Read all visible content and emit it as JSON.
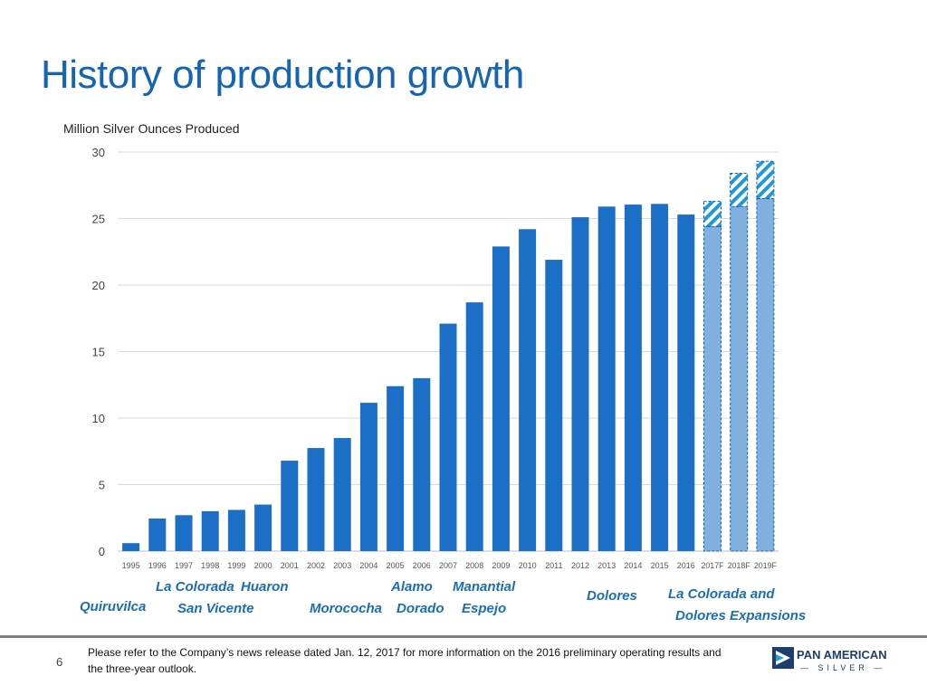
{
  "title": "History of production growth",
  "page_number": "6",
  "footnote": "Please refer to the Company’s news release dated Jan. 12, 2017 for more information on the 2016 preliminary operating results and the three-year outlook.",
  "logo": {
    "name": "PAN AMERICAN",
    "sub": "— SILVER —"
  },
  "colors": {
    "actual": "#1b6fc6",
    "forecast_base": "#7fb0df",
    "forecast_hatch": "#1f9ad6",
    "title": "#1565b0",
    "annotation": "#1b6db5"
  },
  "annotations": [
    "Quiruvilca",
    "La Colorada",
    "San Vicente",
    "Huaron",
    "Morococha",
    "Alamo",
    "Dorado",
    "Manantial",
    "Espejo",
    "Dolores",
    "La Colorada and",
    "Dolores Expansions"
  ],
  "chart_data": {
    "type": "bar",
    "ylabel": "Million Silver Ounces Produced",
    "ylim": [
      0,
      30
    ],
    "yticks": [
      0,
      5,
      10,
      15,
      20,
      25,
      30
    ],
    "grid": true,
    "categories": [
      "1995",
      "1996",
      "1997",
      "1998",
      "1999",
      "2000",
      "2001",
      "2002",
      "2003",
      "2004",
      "2005",
      "2006",
      "2007",
      "2008",
      "2009",
      "2010",
      "2011",
      "2012",
      "2013",
      "2014",
      "2015",
      "2016",
      "2017F",
      "2018F",
      "2019F"
    ],
    "series": [
      {
        "values": [
          0.6,
          2.45,
          2.7,
          3.0,
          3.1,
          3.5,
          6.8,
          7.75,
          8.5,
          11.15,
          12.4,
          13.0,
          17.1,
          18.7,
          22.9,
          24.2,
          21.9,
          25.1,
          25.9,
          26.05,
          26.1,
          25.3,
          24.4,
          25.9,
          26.5
        ]
      },
      {
        "values": [
          0,
          0,
          0,
          0,
          0,
          0,
          0,
          0,
          0,
          0,
          0,
          0,
          0,
          0,
          0,
          0,
          0,
          0,
          0,
          0,
          0,
          0,
          1.9,
          2.5,
          2.8
        ]
      }
    ]
  }
}
